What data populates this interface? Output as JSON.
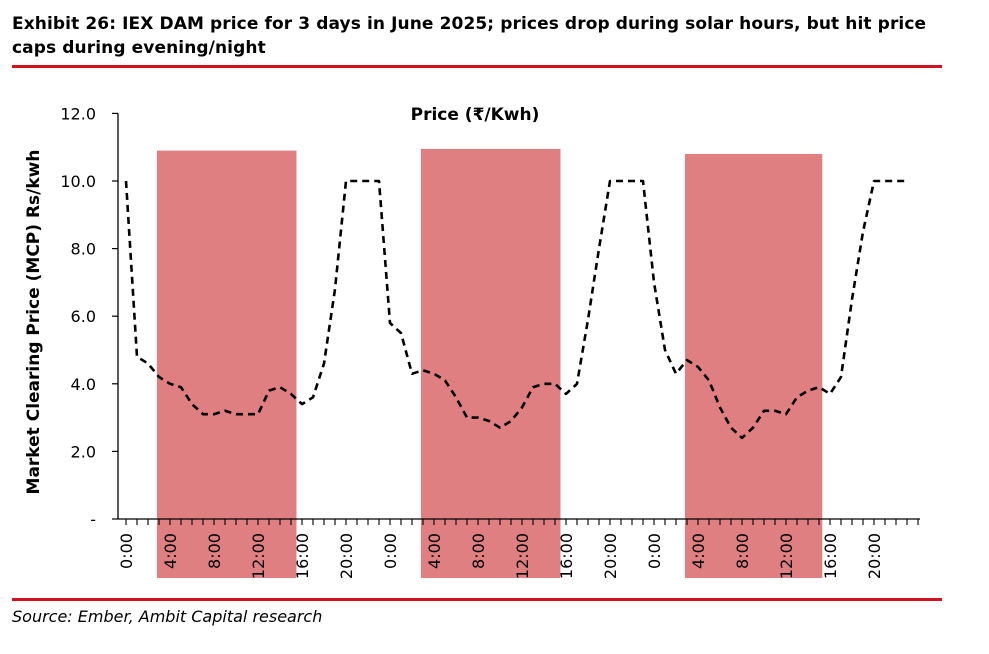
{
  "header": {
    "title": "Exhibit 26: IEX DAM price for 3 days in June 2025; prices drop during solar hours, but hit price caps during evening/night"
  },
  "footer": {
    "source": "Source: Ember, Ambit Capital research"
  },
  "colors": {
    "rule": "#d3121f",
    "highlight": "#e07f82",
    "line": "#000000"
  },
  "chart_data": {
    "type": "line",
    "title": "Price (₹/Kwh)",
    "ylabel": "Market Clearing Price (MCP) Rs/kwh",
    "xlabel": "",
    "ylim": [
      0,
      12
    ],
    "yticks": [
      {
        "value": 0,
        "label": "-"
      },
      {
        "value": 2,
        "label": "2.0"
      },
      {
        "value": 4,
        "label": "4.0"
      },
      {
        "value": 6,
        "label": "6.0"
      },
      {
        "value": 8,
        "label": "8.0"
      },
      {
        "value": 10,
        "label": "10.0"
      },
      {
        "value": 12,
        "label": "12.0"
      }
    ],
    "x_hours": [
      0,
      1,
      2,
      3,
      4,
      5,
      6,
      7,
      8,
      9,
      10,
      11,
      12,
      13,
      14,
      15,
      16,
      17,
      18,
      19,
      20,
      21,
      22,
      23,
      24,
      25,
      26,
      27,
      28,
      29,
      30,
      31,
      32,
      33,
      34,
      35,
      36,
      37,
      38,
      39,
      40,
      41,
      42,
      43,
      44,
      45,
      46,
      47,
      48,
      49,
      50,
      51,
      52,
      53,
      54,
      55,
      56,
      57,
      58,
      59,
      60,
      61,
      62,
      63,
      64,
      65,
      66,
      67,
      68,
      69,
      70,
      71,
      72
    ],
    "xticks": [
      {
        "hour": 0,
        "label": "0:00"
      },
      {
        "hour": 4,
        "label": "4:00"
      },
      {
        "hour": 8,
        "label": "8:00"
      },
      {
        "hour": 12,
        "label": "12:00"
      },
      {
        "hour": 16,
        "label": "16:00"
      },
      {
        "hour": 20,
        "label": "20:00"
      },
      {
        "hour": 24,
        "label": "0:00"
      },
      {
        "hour": 28,
        "label": "4:00"
      },
      {
        "hour": 32,
        "label": "8:00"
      },
      {
        "hour": 36,
        "label": "12:00"
      },
      {
        "hour": 40,
        "label": "16:00"
      },
      {
        "hour": 44,
        "label": "20:00"
      },
      {
        "hour": 48,
        "label": "0:00"
      },
      {
        "hour": 52,
        "label": "4:00"
      },
      {
        "hour": 56,
        "label": "8:00"
      },
      {
        "hour": 60,
        "label": "12:00"
      },
      {
        "hour": 64,
        "label": "16:00"
      },
      {
        "hour": 68,
        "label": "20:00"
      }
    ],
    "series": [
      {
        "name": "Price (₹/Kwh)",
        "style": "dashed",
        "points": [
          [
            0,
            10.0
          ],
          [
            1,
            4.8
          ],
          [
            2,
            4.6
          ],
          [
            3,
            4.2
          ],
          [
            4,
            4.0
          ],
          [
            5,
            3.9
          ],
          [
            6,
            3.4
          ],
          [
            7,
            3.1
          ],
          [
            8,
            3.1
          ],
          [
            9,
            3.2
          ],
          [
            10,
            3.1
          ],
          [
            11,
            3.1
          ],
          [
            12,
            3.1
          ],
          [
            13,
            3.8
          ],
          [
            14,
            3.9
          ],
          [
            15,
            3.7
          ],
          [
            16,
            3.4
          ],
          [
            17,
            3.6
          ],
          [
            18,
            4.6
          ],
          [
            19,
            6.8
          ],
          [
            20,
            10.0
          ],
          [
            21,
            10.0
          ],
          [
            22,
            10.0
          ],
          [
            23,
            10.0
          ],
          [
            24,
            5.8
          ],
          [
            25,
            5.5
          ],
          [
            26,
            4.3
          ],
          [
            27,
            4.4
          ],
          [
            28,
            4.3
          ],
          [
            29,
            4.1
          ],
          [
            30,
            3.6
          ],
          [
            31,
            3.0
          ],
          [
            32,
            3.0
          ],
          [
            33,
            2.9
          ],
          [
            34,
            2.7
          ],
          [
            35,
            2.9
          ],
          [
            36,
            3.3
          ],
          [
            37,
            3.9
          ],
          [
            38,
            4.0
          ],
          [
            39,
            4.0
          ],
          [
            40,
            3.7
          ],
          [
            41,
            4.0
          ],
          [
            42,
            5.9
          ],
          [
            43,
            8.0
          ],
          [
            44,
            10.0
          ],
          [
            45,
            10.0
          ],
          [
            46,
            10.0
          ],
          [
            47,
            10.0
          ],
          [
            48,
            7.0
          ],
          [
            49,
            5.0
          ],
          [
            50,
            4.3
          ],
          [
            51,
            4.7
          ],
          [
            52,
            4.5
          ],
          [
            53,
            4.1
          ],
          [
            54,
            3.3
          ],
          [
            55,
            2.7
          ],
          [
            56,
            2.4
          ],
          [
            57,
            2.7
          ],
          [
            58,
            3.2
          ],
          [
            59,
            3.2
          ],
          [
            60,
            3.1
          ],
          [
            61,
            3.6
          ],
          [
            62,
            3.8
          ],
          [
            63,
            3.9
          ],
          [
            64,
            3.7
          ],
          [
            65,
            4.2
          ],
          [
            66,
            6.5
          ],
          [
            67,
            8.5
          ],
          [
            68,
            10.0
          ],
          [
            69,
            10.0
          ],
          [
            70,
            10.0
          ],
          [
            71,
            10.0
          ]
        ]
      }
    ],
    "solar_windows": [
      {
        "start_hour": 3,
        "end_hour": 15.5,
        "top": 10.9
      },
      {
        "start_hour": 27,
        "end_hour": 39.5,
        "top": 10.95
      },
      {
        "start_hour": 51,
        "end_hour": 63.3,
        "top": 10.8
      }
    ],
    "grid": false,
    "legend": "none"
  }
}
